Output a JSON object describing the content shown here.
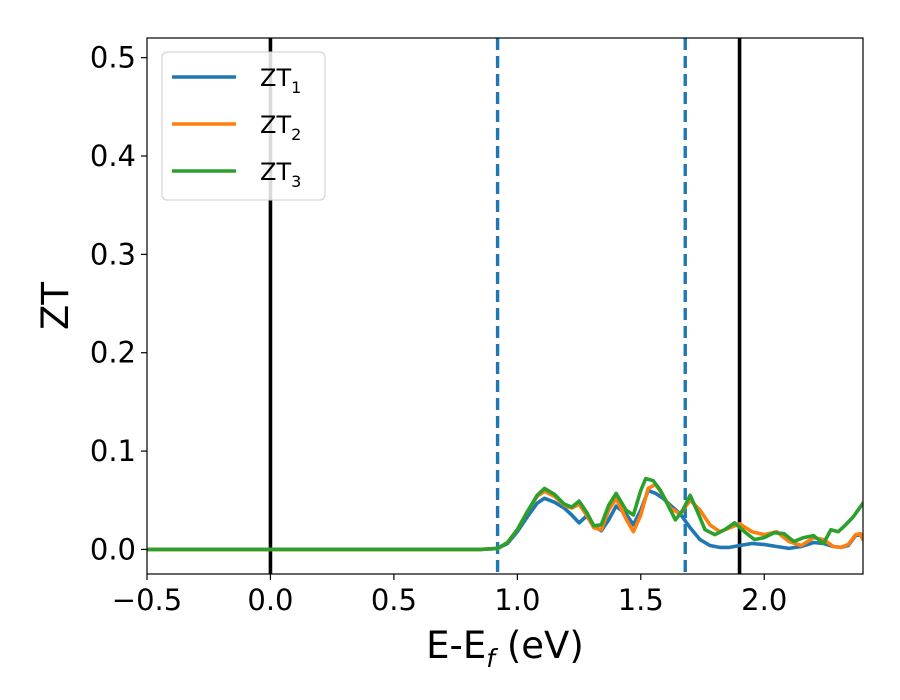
{
  "chart_data": {
    "type": "line",
    "title": "",
    "xlabel": {
      "main": "E-E",
      "sub": "f",
      "tail": " (eV)"
    },
    "ylabel": "ZT",
    "xlim": [
      -0.5,
      2.4
    ],
    "ylim": [
      -0.025,
      0.52
    ],
    "x_ticks": [
      -0.5,
      0.0,
      0.5,
      1.0,
      1.5,
      2.0
    ],
    "x_tick_labels": [
      "−0.5",
      "0.0",
      "0.5",
      "1.0",
      "1.5",
      "2.0"
    ],
    "y_ticks": [
      0.0,
      0.1,
      0.2,
      0.3,
      0.4,
      0.5
    ],
    "y_tick_labels": [
      "0.0",
      "0.1",
      "0.2",
      "0.3",
      "0.4",
      "0.5"
    ],
    "grid": false,
    "legend_position": "top-left",
    "vertical_lines": [
      {
        "x": 0.0,
        "style": "solid",
        "color": "#000000"
      },
      {
        "x": 0.92,
        "style": "dashed",
        "color": "#1f77b4"
      },
      {
        "x": 1.68,
        "style": "dashed",
        "color": "#1f77b4"
      },
      {
        "x": 1.9,
        "style": "solid",
        "color": "#000000"
      }
    ],
    "series": [
      {
        "name": "ZT",
        "name_sub": "1",
        "color": "#1f77b4",
        "points": [
          [
            -0.5,
            0
          ],
          [
            0.85,
            0
          ],
          [
            0.92,
            0.001
          ],
          [
            0.96,
            0.006
          ],
          [
            1.0,
            0.018
          ],
          [
            1.04,
            0.033
          ],
          [
            1.08,
            0.047
          ],
          [
            1.11,
            0.052
          ],
          [
            1.15,
            0.048
          ],
          [
            1.19,
            0.042
          ],
          [
            1.22,
            0.035
          ],
          [
            1.25,
            0.027
          ],
          [
            1.28,
            0.034
          ],
          [
            1.31,
            0.024
          ],
          [
            1.34,
            0.019
          ],
          [
            1.37,
            0.03
          ],
          [
            1.4,
            0.044
          ],
          [
            1.44,
            0.036
          ],
          [
            1.47,
            0.025
          ],
          [
            1.5,
            0.04
          ],
          [
            1.53,
            0.06
          ],
          [
            1.56,
            0.057
          ],
          [
            1.59,
            0.052
          ],
          [
            1.62,
            0.045
          ],
          [
            1.66,
            0.036
          ],
          [
            1.7,
            0.022
          ],
          [
            1.74,
            0.01
          ],
          [
            1.78,
            0.004
          ],
          [
            1.82,
            0.002
          ],
          [
            1.86,
            0.002
          ],
          [
            1.9,
            0.004
          ],
          [
            1.95,
            0.006
          ],
          [
            2.0,
            0.005
          ],
          [
            2.05,
            0.003
          ],
          [
            2.1,
            0.001
          ],
          [
            2.15,
            0.003
          ],
          [
            2.2,
            0.007
          ],
          [
            2.24,
            0.006
          ],
          [
            2.28,
            0.003
          ],
          [
            2.31,
            0.002
          ],
          [
            2.34,
            0.004
          ],
          [
            2.37,
            0.014
          ],
          [
            2.39,
            0.015
          ],
          [
            2.4,
            0.01
          ]
        ]
      },
      {
        "name": "ZT",
        "name_sub": "2",
        "color": "#ff7f0e",
        "points": [
          [
            -0.5,
            0
          ],
          [
            0.85,
            0
          ],
          [
            0.92,
            0.001
          ],
          [
            0.96,
            0.007
          ],
          [
            1.0,
            0.02
          ],
          [
            1.04,
            0.038
          ],
          [
            1.08,
            0.054
          ],
          [
            1.11,
            0.059
          ],
          [
            1.15,
            0.054
          ],
          [
            1.19,
            0.045
          ],
          [
            1.22,
            0.042
          ],
          [
            1.25,
            0.046
          ],
          [
            1.28,
            0.035
          ],
          [
            1.31,
            0.022
          ],
          [
            1.34,
            0.02
          ],
          [
            1.37,
            0.04
          ],
          [
            1.4,
            0.052
          ],
          [
            1.44,
            0.031
          ],
          [
            1.47,
            0.018
          ],
          [
            1.5,
            0.035
          ],
          [
            1.53,
            0.062
          ],
          [
            1.56,
            0.066
          ],
          [
            1.59,
            0.055
          ],
          [
            1.62,
            0.042
          ],
          [
            1.66,
            0.036
          ],
          [
            1.7,
            0.05
          ],
          [
            1.74,
            0.04
          ],
          [
            1.78,
            0.025
          ],
          [
            1.82,
            0.018
          ],
          [
            1.86,
            0.022
          ],
          [
            1.9,
            0.026
          ],
          [
            1.95,
            0.018
          ],
          [
            2.0,
            0.015
          ],
          [
            2.05,
            0.018
          ],
          [
            2.1,
            0.008
          ],
          [
            2.15,
            0.004
          ],
          [
            2.2,
            0.012
          ],
          [
            2.24,
            0.01
          ],
          [
            2.28,
            0.003
          ],
          [
            2.31,
            0.002
          ],
          [
            2.34,
            0.005
          ],
          [
            2.37,
            0.015
          ],
          [
            2.39,
            0.016
          ],
          [
            2.4,
            0.01
          ]
        ]
      },
      {
        "name": "ZT",
        "name_sub": "3",
        "color": "#2ca02c",
        "points": [
          [
            -0.5,
            0
          ],
          [
            0.85,
            0
          ],
          [
            0.92,
            0.001
          ],
          [
            0.96,
            0.007
          ],
          [
            1.0,
            0.02
          ],
          [
            1.04,
            0.038
          ],
          [
            1.08,
            0.055
          ],
          [
            1.11,
            0.062
          ],
          [
            1.15,
            0.056
          ],
          [
            1.19,
            0.046
          ],
          [
            1.22,
            0.043
          ],
          [
            1.25,
            0.049
          ],
          [
            1.28,
            0.038
          ],
          [
            1.31,
            0.024
          ],
          [
            1.34,
            0.025
          ],
          [
            1.37,
            0.045
          ],
          [
            1.4,
            0.057
          ],
          [
            1.44,
            0.04
          ],
          [
            1.47,
            0.035
          ],
          [
            1.5,
            0.06
          ],
          [
            1.52,
            0.072
          ],
          [
            1.55,
            0.07
          ],
          [
            1.58,
            0.06
          ],
          [
            1.61,
            0.045
          ],
          [
            1.64,
            0.03
          ],
          [
            1.67,
            0.04
          ],
          [
            1.7,
            0.055
          ],
          [
            1.73,
            0.038
          ],
          [
            1.76,
            0.02
          ],
          [
            1.8,
            0.015
          ],
          [
            1.84,
            0.02
          ],
          [
            1.88,
            0.027
          ],
          [
            1.92,
            0.018
          ],
          [
            1.96,
            0.01
          ],
          [
            2.0,
            0.012
          ],
          [
            2.04,
            0.017
          ],
          [
            2.08,
            0.016
          ],
          [
            2.12,
            0.008
          ],
          [
            2.16,
            0.012
          ],
          [
            2.2,
            0.014
          ],
          [
            2.24,
            0.006
          ],
          [
            2.27,
            0.02
          ],
          [
            2.3,
            0.018
          ],
          [
            2.33,
            0.025
          ],
          [
            2.36,
            0.033
          ],
          [
            2.4,
            0.047
          ]
        ]
      }
    ]
  }
}
